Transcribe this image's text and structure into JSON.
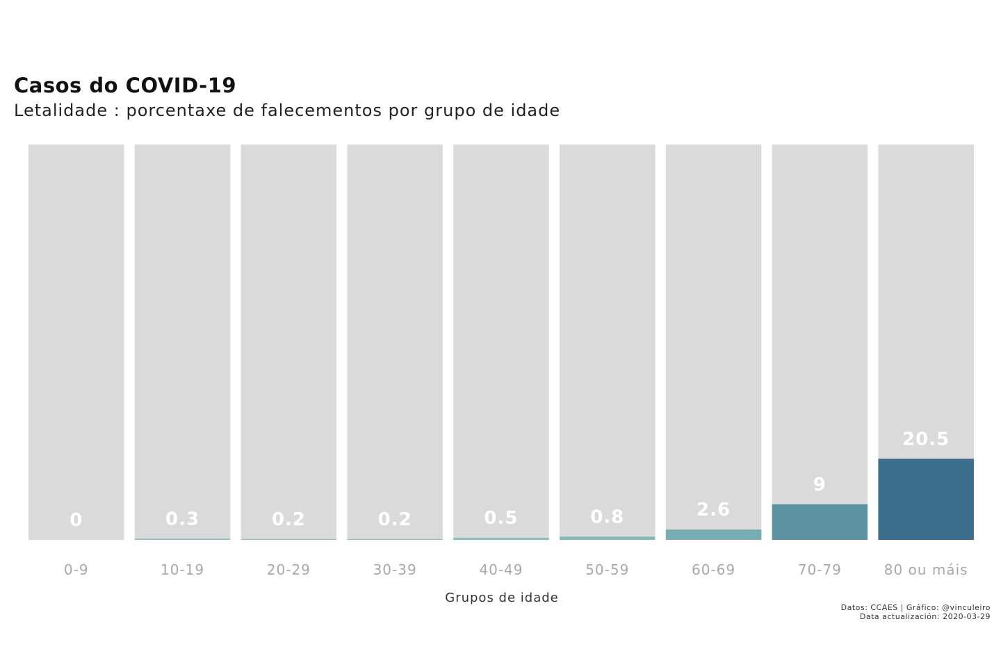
{
  "chart_data": {
    "type": "bar",
    "title": "Casos do COVID-19",
    "subtitle": "Letalidade : porcentaxe de falecementos por grupo de idade",
    "xlabel": "Grupos de idade",
    "ylabel": "",
    "categories": [
      "0-9",
      "10-19",
      "20-29",
      "30-39",
      "40-49",
      "50-59",
      "60-69",
      "70-79",
      "80 ou máis"
    ],
    "values": [
      0,
      0.3,
      0.2,
      0.2,
      0.5,
      0.8,
      2.6,
      9,
      20.5
    ],
    "value_labels": [
      "0",
      "0.3",
      "0.2",
      "0.2",
      "0.5",
      "0.8",
      "2.6",
      "9",
      "20.5"
    ],
    "ylim": [
      0,
      100
    ],
    "grid": false,
    "legend": "none",
    "background_bar_color": "#dadada",
    "color_scale": [
      "#8cc7c2",
      "#3b6e8c"
    ],
    "label_color": "#ffffff",
    "tick_color": "#a8a8a8",
    "caption": [
      "Datos: CCAES | Gráfico: @vinculeiro",
      "Data actualización: 2020-03-29"
    ]
  }
}
